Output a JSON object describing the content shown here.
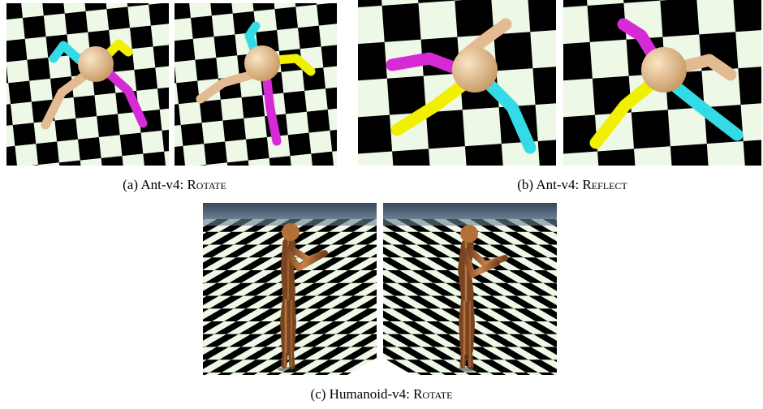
{
  "figure": {
    "subfigures": [
      {
        "label": "(a)",
        "env": "Ant-v4:",
        "transform": "Rotate",
        "panels": [
          {
            "name": "ant-rotate-original",
            "subject": "ant-robot",
            "limb_colors": [
              "#e2bb93",
              "#33dbe6",
              "#f0f000",
              "#d62ad6"
            ]
          },
          {
            "name": "ant-rotate-transformed",
            "subject": "ant-robot",
            "limb_colors": [
              "#e2bb93",
              "#33dbe6",
              "#f0f000",
              "#d62ad6"
            ]
          }
        ]
      },
      {
        "label": "(b)",
        "env": "Ant-v4:",
        "transform": "Reflect",
        "panels": [
          {
            "name": "ant-reflect-original",
            "subject": "ant-robot",
            "limb_colors": [
              "#e2bb93",
              "#33dbe6",
              "#f0f000",
              "#d62ad6"
            ]
          },
          {
            "name": "ant-reflect-transformed",
            "subject": "ant-robot",
            "limb_colors": [
              "#e2bb93",
              "#33dbe6",
              "#f0f000",
              "#d62ad6"
            ]
          }
        ]
      },
      {
        "label": "(c)",
        "env": "Humanoid-v4:",
        "transform": "Rotate",
        "panels": [
          {
            "name": "humanoid-rotate-original",
            "subject": "humanoid-robot",
            "sky_color": "#3d4e63"
          },
          {
            "name": "humanoid-rotate-transformed",
            "subject": "humanoid-robot",
            "sky_color": "#3d4e63"
          }
        ]
      }
    ],
    "colors": {
      "checker_light": "#eef8e6",
      "checker_dark": "#000000",
      "ant_body": "#e8c392",
      "humanoid_body": "#b5703a"
    }
  }
}
